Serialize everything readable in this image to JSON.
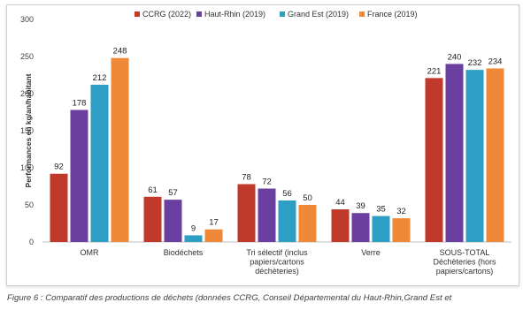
{
  "chart_data": {
    "type": "bar",
    "title": "",
    "ylabel": "Performances en kg/an/habitant",
    "xlabel": "",
    "ylim": [
      0,
      300
    ],
    "yticks": [
      0,
      50,
      100,
      150,
      200,
      250,
      300
    ],
    "grid": false,
    "legend_position": "top",
    "categories": [
      [
        "OMR"
      ],
      [
        "Biodéchets"
      ],
      [
        "Tri sélectif  (inclus",
        "papiers/cartons",
        "déchèteries)"
      ],
      [
        "Verre"
      ],
      [
        "SOUS-TOTAL",
        "Déchèteries (hors",
        "papiers/cartons)"
      ]
    ],
    "series": [
      {
        "name": "CCRG (2022)",
        "color": "#c0392b",
        "values": [
          92,
          61,
          78,
          44,
          221
        ]
      },
      {
        "name": "Haut-Rhin (2019)",
        "color": "#6b3fa0",
        "values": [
          178,
          57,
          72,
          39,
          240
        ]
      },
      {
        "name": "Grand Est (2019)",
        "color": "#2e9fc4",
        "values": [
          212,
          9,
          56,
          35,
          232
        ]
      },
      {
        "name": "France (2019)",
        "color": "#f0883a",
        "values": [
          248,
          17,
          50,
          32,
          234
        ]
      }
    ]
  },
  "caption": "Figure 6 : Comparatif des productions de déchets (données CCRG, Conseil Départemental du Haut-Rhin,Grand Est et"
}
